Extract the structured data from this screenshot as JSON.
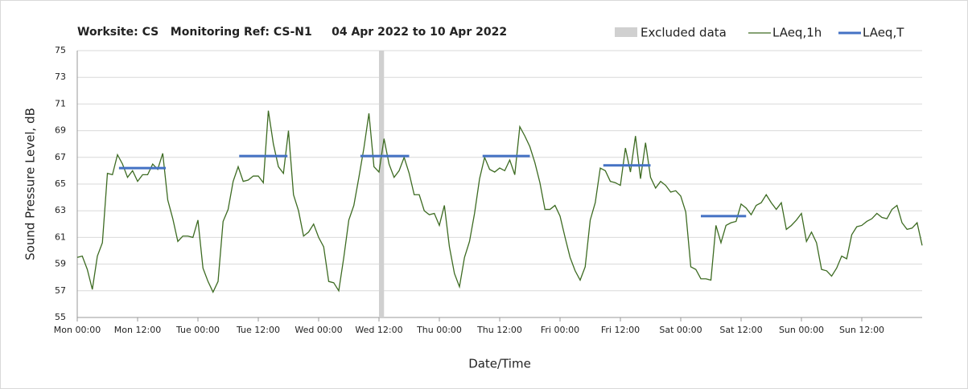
{
  "chart_data": {
    "type": "line",
    "title": "Worksite: CS   Monitoring Ref: CS-N1     04 Apr 2022 to 10 Apr 2022",
    "ylabel": "Sound Pressure Level, dB",
    "xlabel": "Date/Time",
    "xlim": [
      0,
      168
    ],
    "ylim": [
      55,
      75
    ],
    "yticks": [
      55,
      57,
      59,
      61,
      63,
      65,
      67,
      69,
      71,
      73,
      75
    ],
    "xticks": [
      {
        "value": 0,
        "label": "Mon 00:00"
      },
      {
        "value": 12,
        "label": "Mon 12:00"
      },
      {
        "value": 24,
        "label": "Tue 00:00"
      },
      {
        "value": 36,
        "label": "Tue 12:00"
      },
      {
        "value": 48,
        "label": "Wed 00:00"
      },
      {
        "value": 60,
        "label": "Wed 12:00"
      },
      {
        "value": 72,
        "label": "Thu 00:00"
      },
      {
        "value": 84,
        "label": "Thu 12:00"
      },
      {
        "value": 96,
        "label": "Fri 00:00"
      },
      {
        "value": 108,
        "label": "Fri 12:00"
      },
      {
        "value": 120,
        "label": "Sat 00:00"
      },
      {
        "value": 132,
        "label": "Sat 12:00"
      },
      {
        "value": 144,
        "label": "Sun 00:00"
      },
      {
        "value": 156,
        "label": "Sun 12:00"
      }
    ],
    "grid": true,
    "excluded": {
      "name": "Excluded data",
      "color": "#d0d0d0",
      "x": [
        60,
        61
      ]
    },
    "x": [
      0,
      1,
      2,
      3,
      4,
      5,
      6,
      7,
      8,
      9,
      10,
      11,
      12,
      13,
      14,
      15,
      16,
      17,
      18,
      19,
      20,
      21,
      22,
      23,
      24,
      25,
      26,
      27,
      28,
      29,
      30,
      31,
      32,
      33,
      34,
      35,
      36,
      37,
      38,
      39,
      40,
      41,
      42,
      43,
      44,
      45,
      46,
      47,
      48,
      49,
      50,
      51,
      52,
      53,
      54,
      55,
      56,
      57,
      58,
      59,
      60,
      61,
      62,
      63,
      64,
      65,
      66,
      67,
      68,
      69,
      70,
      71,
      72,
      73,
      74,
      75,
      76,
      77,
      78,
      79,
      80,
      81,
      82,
      83,
      84,
      85,
      86,
      87,
      88,
      89,
      90,
      91,
      92,
      93,
      94,
      95,
      96,
      97,
      98,
      99,
      100,
      101,
      102,
      103,
      104,
      105,
      106,
      107,
      108,
      109,
      110,
      111,
      112,
      113,
      114,
      115,
      116,
      117,
      118,
      119,
      120,
      121,
      122,
      123,
      124,
      125,
      126,
      127,
      128,
      129,
      130,
      131,
      132,
      133,
      134,
      135,
      136,
      137,
      138,
      139,
      140,
      141,
      142,
      143,
      144,
      145,
      146,
      147,
      148,
      149,
      150,
      151,
      152,
      153,
      154,
      155,
      156,
      157,
      158,
      159,
      160,
      161,
      162,
      163,
      164,
      165,
      166,
      167,
      168
    ],
    "series": [
      {
        "name": "LAeq,1h",
        "color": "#3d6b22",
        "values": [
          59.5,
          59.6,
          58.6,
          57.1,
          59.6,
          60.6,
          65.8,
          65.7,
          67.2,
          66.5,
          65.5,
          66.0,
          65.2,
          65.7,
          65.7,
          66.5,
          66.1,
          67.3,
          63.8,
          62.4,
          60.7,
          61.1,
          61.1,
          61.0,
          62.3,
          58.7,
          57.7,
          56.9,
          57.7,
          62.2,
          63.1,
          65.2,
          66.3,
          65.2,
          65.3,
          65.6,
          65.6,
          65.1,
          70.5,
          68.0,
          66.3,
          65.8,
          69.0,
          64.2,
          63.0,
          61.1,
          61.4,
          62.0,
          61.0,
          60.3,
          57.7,
          57.6,
          57.0,
          59.5,
          62.3,
          63.4,
          65.5,
          67.7,
          70.3,
          66.3,
          65.9,
          68.4,
          66.5,
          65.5,
          66.0,
          67.0,
          65.8,
          64.2,
          64.2,
          63.0,
          62.7,
          62.8,
          61.9,
          63.4,
          60.3,
          58.3,
          57.3,
          59.5,
          60.7,
          62.8,
          65.4,
          67.0,
          66.1,
          65.9,
          66.2,
          66.0,
          66.8,
          65.7,
          69.3,
          68.6,
          67.8,
          66.6,
          65.1,
          63.1,
          63.1,
          63.4,
          62.6,
          61.0,
          59.5,
          58.5,
          57.8,
          58.8,
          62.3,
          63.6,
          66.2,
          66.0,
          65.2,
          65.1,
          64.9,
          67.7,
          65.9,
          68.6,
          65.4,
          68.1,
          65.5,
          64.7,
          65.2,
          64.9,
          64.4,
          64.5,
          64.1,
          62.9,
          58.8,
          58.6,
          57.9,
          57.9,
          57.8,
          61.9,
          60.6,
          61.9,
          62.1,
          62.2,
          63.5,
          63.2,
          62.7,
          63.4,
          63.6,
          64.2,
          63.6,
          63.1,
          63.6,
          61.6,
          61.9,
          62.3,
          62.8,
          60.7,
          61.4,
          60.6,
          58.6,
          58.5,
          58.1,
          58.7,
          59.6,
          59.4,
          61.2,
          61.8,
          61.9,
          62.2,
          62.4,
          62.8,
          62.5,
          62.4,
          63.1,
          63.4,
          62.1,
          61.6,
          61.7,
          62.1,
          60.4
        ]
      },
      {
        "name": "LAeq,T",
        "color": "#4472c4",
        "segments": [
          {
            "x": [
              8.3,
              17.6
            ],
            "value": 66.2
          },
          {
            "x": [
              32.2,
              41.8
            ],
            "value": 67.1
          },
          {
            "x": [
              56.3,
              66
            ],
            "value": 67.1
          },
          {
            "x": [
              80.6,
              90
            ],
            "value": 67.1
          },
          {
            "x": [
              104.6,
              114
            ],
            "value": 66.4
          },
          {
            "x": [
              124,
              133
            ],
            "value": 62.6
          }
        ]
      }
    ]
  }
}
